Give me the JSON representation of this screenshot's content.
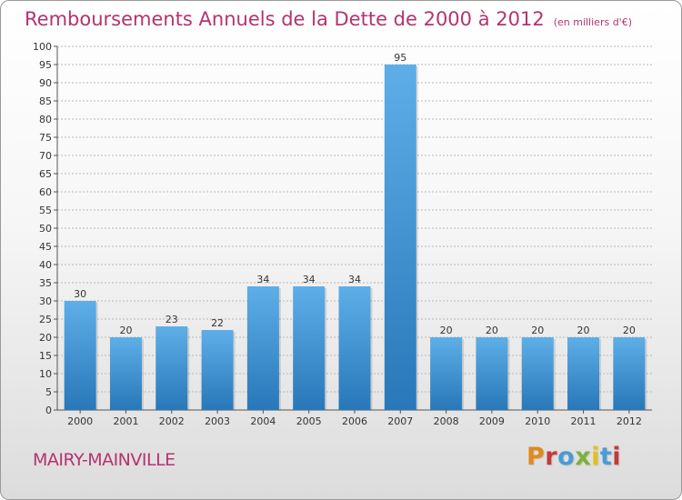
{
  "header": {
    "title": "Remboursements Annuels de la Dette de 2000 à 2012",
    "unit": "(en milliers d'€)"
  },
  "footer": {
    "commune": "MAIRY-MAINVILLE",
    "logo": "Proxiti",
    "logo_colors": [
      "#e08a1e",
      "#c43a3a",
      "#4a9bd6",
      "#7ab23c",
      "#e0c21e",
      "#4a9bd6",
      "#c43a3a"
    ]
  },
  "colors": {
    "title": "#b5336f",
    "bar_top": "#5eaee8",
    "bar_bottom": "#2878b9",
    "grid": "#b8b8b8"
  },
  "chart_data": {
    "type": "bar",
    "title": "Remboursements Annuels de la Dette de 2000 à 2012",
    "xlabel": "",
    "ylabel": "",
    "categories": [
      "2000",
      "2001",
      "2002",
      "2003",
      "2004",
      "2005",
      "2006",
      "2007",
      "2008",
      "2009",
      "2010",
      "2011",
      "2012"
    ],
    "values": [
      30,
      20,
      23,
      22,
      34,
      34,
      34,
      95,
      20,
      20,
      20,
      20,
      20
    ],
    "ylim": [
      0,
      100
    ],
    "yticks": [
      "0",
      "5",
      "10",
      "15",
      "20",
      "25",
      "30",
      "35",
      "40",
      "45",
      "50",
      "55",
      "60",
      "65",
      "70",
      "75",
      "80",
      "85",
      "90",
      "95",
      "100"
    ],
    "grid": true,
    "data_labels": true
  }
}
